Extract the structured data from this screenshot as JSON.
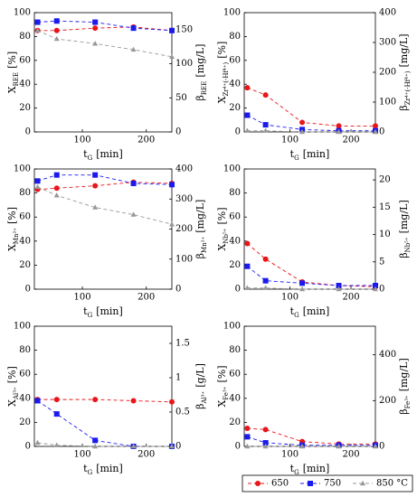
{
  "legend": {
    "entries": [
      {
        "name": "650",
        "color": "#e8161b",
        "marker": "circle"
      },
      {
        "name": "750",
        "color": "#1a1aee",
        "marker": "square"
      },
      {
        "name": "850 °C",
        "color": "#999999",
        "marker": "triangle"
      }
    ],
    "line_style": "dashed"
  },
  "chart_data": [
    {
      "type": "line",
      "xlabel": {
        "main": "t",
        "sub": "G",
        "unit": "[min]"
      },
      "ylabel": {
        "main": "X",
        "sub": "REE",
        "unit": "[%]"
      },
      "y2label": {
        "main": "β",
        "sub": "REE",
        "unit": "[mg/L]"
      },
      "x": [
        30,
        60,
        120,
        180,
        240
      ],
      "xlim": [
        25,
        240
      ],
      "xticks": [
        100,
        200
      ],
      "ylim": [
        0,
        100
      ],
      "yticks": [
        0,
        20,
        40,
        60,
        80,
        100
      ],
      "y2lim": [
        0,
        175
      ],
      "y2ticks": [
        0,
        50,
        100,
        150
      ],
      "series": [
        {
          "values": [
            85,
            85,
            87,
            88,
            85
          ]
        },
        {
          "values": [
            92,
            93,
            92,
            87,
            85
          ]
        },
        {
          "values": [
            85,
            78,
            74,
            69,
            63
          ]
        }
      ]
    },
    {
      "type": "line",
      "xlabel": {
        "main": "t",
        "sub": "G",
        "unit": "[min]"
      },
      "ylabel": {
        "main": "X",
        "sub": "Zr⁴⁺(-Hf⁴⁺)",
        "unit": "[%]"
      },
      "y2label": {
        "main": "β",
        "sub": "Zr⁴⁺(-Hf⁴⁺)",
        "unit": "[mg/L]"
      },
      "x": [
        30,
        60,
        120,
        180,
        240
      ],
      "xlim": [
        25,
        240
      ],
      "xticks": [
        100,
        200
      ],
      "ylim": [
        0,
        100
      ],
      "yticks": [
        0,
        20,
        40,
        60,
        80,
        100
      ],
      "y2lim": [
        0,
        400
      ],
      "y2ticks": [
        0,
        100,
        200,
        300,
        400
      ],
      "series": [
        {
          "values": [
            37,
            31,
            8,
            5,
            5
          ]
        },
        {
          "values": [
            14,
            6,
            2,
            1,
            1
          ]
        },
        {
          "values": [
            1,
            1,
            0,
            0,
            0
          ]
        }
      ]
    },
    {
      "type": "line",
      "xlabel": {
        "main": "t",
        "sub": "G",
        "unit": "[min]"
      },
      "ylabel": {
        "main": "X",
        "sub": "Mn²⁺",
        "unit": "[%]"
      },
      "y2label": {
        "main": "β",
        "sub": "Mn²⁺",
        "unit": "[mg/L]"
      },
      "x": [
        30,
        60,
        120,
        180,
        240
      ],
      "xlim": [
        25,
        240
      ],
      "xticks": [
        100,
        200
      ],
      "ylim": [
        0,
        100
      ],
      "yticks": [
        0,
        20,
        40,
        60,
        80,
        100
      ],
      "y2lim": [
        0,
        400
      ],
      "y2ticks": [
        0,
        100,
        200,
        300,
        400
      ],
      "series": [
        {
          "values": [
            83,
            84,
            86,
            89,
            88
          ]
        },
        {
          "values": [
            90,
            95,
            95,
            88,
            87
          ]
        },
        {
          "values": [
            85,
            78,
            68,
            62,
            54
          ]
        }
      ]
    },
    {
      "type": "line",
      "xlabel": {
        "main": "t",
        "sub": "G",
        "unit": "[min]"
      },
      "ylabel": {
        "main": "X",
        "sub": "Nb⁵⁺",
        "unit": "[%]"
      },
      "y2label": {
        "main": "β",
        "sub": "Nb⁵⁺",
        "unit": "[mg/L]"
      },
      "x": [
        30,
        60,
        120,
        180,
        240
      ],
      "xlim": [
        25,
        240
      ],
      "xticks": [
        100,
        200
      ],
      "ylim": [
        0,
        100
      ],
      "yticks": [
        0,
        20,
        40,
        60,
        80,
        100
      ],
      "y2lim": [
        0,
        22
      ],
      "y2ticks": [
        0,
        5,
        10,
        15,
        20
      ],
      "series": [
        {
          "values": [
            38,
            25,
            6,
            3,
            2
          ]
        },
        {
          "values": [
            19,
            7,
            5,
            3,
            3
          ]
        },
        {
          "values": [
            1,
            1,
            0,
            0,
            0
          ]
        }
      ]
    },
    {
      "type": "line",
      "xlabel": {
        "main": "t",
        "sub": "G",
        "unit": "[min]"
      },
      "ylabel": {
        "main": "X",
        "sub": "Al³⁺",
        "unit": "[%]"
      },
      "y2label": {
        "main": "β",
        "sub": "Al³⁺",
        "unit": "[g/L]"
      },
      "x": [
        30,
        60,
        120,
        180,
        240
      ],
      "xlim": [
        25,
        240
      ],
      "xticks": [
        100,
        200
      ],
      "ylim": [
        0,
        100
      ],
      "yticks": [
        0,
        20,
        40,
        60,
        80,
        100
      ],
      "y2lim": [
        0,
        1.75
      ],
      "y2ticks": [
        0,
        0.5,
        1,
        1.5
      ],
      "series": [
        {
          "values": [
            39,
            39,
            39,
            38,
            37
          ]
        },
        {
          "values": [
            38,
            27,
            5,
            0,
            0
          ]
        },
        {
          "values": [
            3,
            1,
            0,
            0,
            0
          ]
        }
      ]
    },
    {
      "type": "line",
      "xlabel": {
        "main": "t",
        "sub": "G",
        "unit": "[min]"
      },
      "ylabel": {
        "main": "X",
        "sub": "Fe³⁺",
        "unit": "[%]"
      },
      "y2label": {
        "main": "β",
        "sub": "Fe³⁺",
        "unit": "[mg/L]"
      },
      "x": [
        30,
        60,
        120,
        180,
        240
      ],
      "xlim": [
        25,
        240
      ],
      "xticks": [
        100,
        200
      ],
      "ylim": [
        0,
        100
      ],
      "yticks": [
        0,
        20,
        40,
        60,
        80,
        100
      ],
      "y2lim": [
        0,
        525
      ],
      "y2ticks": [
        0,
        200,
        400
      ],
      "series": [
        {
          "values": [
            15,
            14,
            4,
            2,
            2
          ]
        },
        {
          "values": [
            8,
            3,
            1,
            1,
            1
          ]
        },
        {
          "values": [
            0,
            0,
            0,
            0,
            0
          ]
        }
      ]
    }
  ]
}
